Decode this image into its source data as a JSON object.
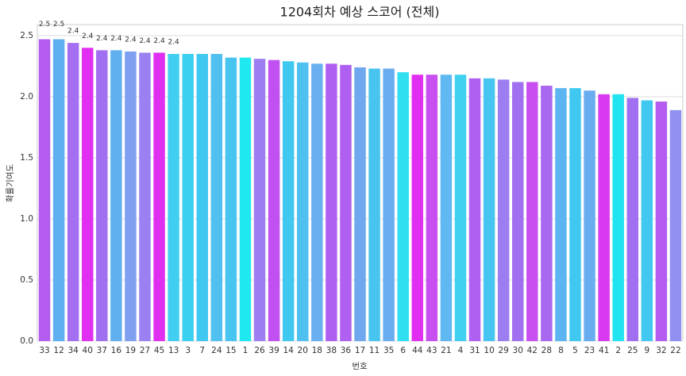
{
  "chart_data": {
    "type": "bar",
    "title": "1204회차 예상 스코어 (전체)",
    "x_label": "번호",
    "y_label": "확률기여도",
    "categories": [
      "33",
      "12",
      "34",
      "40",
      "37",
      "16",
      "19",
      "27",
      "45",
      "13",
      "3",
      "7",
      "24",
      "15",
      "1",
      "26",
      "39",
      "14",
      "20",
      "18",
      "38",
      "36",
      "17",
      "11",
      "35",
      "6",
      "44",
      "43",
      "21",
      "4",
      "31",
      "10",
      "29",
      "30",
      "42",
      "28",
      "8",
      "5",
      "23",
      "41",
      "2",
      "25",
      "9",
      "32",
      "22"
    ],
    "values": [
      2.47,
      2.47,
      2.44,
      2.4,
      2.38,
      2.38,
      2.37,
      2.36,
      2.36,
      2.35,
      2.35,
      2.35,
      2.35,
      2.32,
      2.32,
      2.31,
      2.3,
      2.29,
      2.28,
      2.27,
      2.27,
      2.26,
      2.24,
      2.23,
      2.23,
      2.2,
      2.18,
      2.18,
      2.18,
      2.18,
      2.15,
      2.15,
      2.14,
      2.12,
      2.12,
      2.09,
      2.07,
      2.07,
      2.05,
      2.02,
      2.02,
      1.99,
      1.97,
      1.96,
      1.89
    ],
    "value_labels": [
      "2.5",
      "2.5",
      "2.4",
      "2.4",
      "2.4",
      "2.4",
      "2.4",
      "2.4",
      "2.4",
      "2.4",
      null,
      null,
      null,
      null,
      null,
      null,
      null,
      null,
      null,
      null,
      null,
      null,
      null,
      null,
      null,
      null,
      null,
      null,
      null,
      null,
      null,
      null,
      null,
      null,
      null,
      null,
      null,
      null,
      null,
      null,
      null,
      null,
      null,
      null,
      null
    ],
    "colors": [
      "#b45cf0",
      "#5eb0f0",
      "#a46ff0",
      "#e02ff0",
      "#a070f0",
      "#60b0f0",
      "#7fa0f0",
      "#9a80f0",
      "#e02ff0",
      "#40cff0",
      "#3cd0f0",
      "#40c8f0",
      "#50c0f0",
      "#48c4f0",
      "#20e8f0",
      "#9c7ef0",
      "#c050f0",
      "#40c8f0",
      "#50c0f0",
      "#6ab0f0",
      "#b060f0",
      "#b060f0",
      "#70a8f0",
      "#48c4f0",
      "#6aacf0",
      "#30e0f0",
      "#e02ff0",
      "#c850f0",
      "#60b8f0",
      "#40d0f0",
      "#b060f0",
      "#48c4f0",
      "#9c7ef0",
      "#a070f0",
      "#c850f0",
      "#aa68f0",
      "#5cb4f0",
      "#40c8f0",
      "#6aacf0",
      "#d838f0",
      "#20e4f0",
      "#a070f0",
      "#40c8f0",
      "#b45cf0",
      "#9090f0"
    ],
    "ylim": [
      0,
      2.59
    ],
    "yticks": [
      {
        "value": 0,
        "label": "0.0"
      },
      0.5,
      {
        "value": 1,
        "label": "1.0"
      },
      1.5,
      {
        "value": 2,
        "label": "2.0"
      },
      2.5
    ],
    "grid": true
  }
}
